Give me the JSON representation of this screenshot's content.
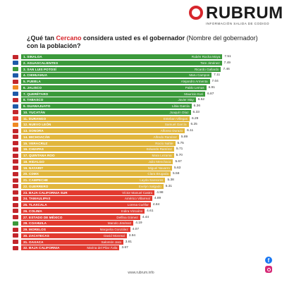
{
  "brand": {
    "name": "RUBRUM",
    "tagline": "INFORMACIÓN SALIDA DE CODIGO",
    "accent": "#d7262c"
  },
  "title": {
    "part1": "¿Qué tan ",
    "highlight": "Cercano",
    "part2": " considera usted es el gobernador ",
    "part3": "(Nombre del gobernador)",
    "part4": " con la población?"
  },
  "footer": "www.rubrum.info",
  "social": [
    "facebook-icon",
    "instagram-icon"
  ],
  "colors": {
    "green": "#3b9a3b",
    "yellow": "#e1b63c",
    "red": "#e23b30"
  },
  "chart_data": {
    "type": "bar",
    "orientation": "horizontal",
    "xlim": [
      0,
      8
    ],
    "rows": [
      {
        "rank": 1,
        "state": "1. SINALOA",
        "governor": "Rubén Rocha Moya",
        "value": 7.51,
        "color": "green",
        "flag": "#c3262c"
      },
      {
        "rank": 2,
        "state": "2. AGUASCALIENTES",
        "governor": "Tere Jiménez",
        "value": 7.49,
        "color": "green",
        "flag": "#1e5aa8"
      },
      {
        "rank": 3,
        "state": "3. SAN LUIS POTOSÍ",
        "governor": "Ricardo Gallardo",
        "value": 7.46,
        "color": "green",
        "flag": "#3b9a3b"
      },
      {
        "rank": 4,
        "state": "4. CHIHUAHUA",
        "governor": "Maru Campos",
        "value": 7.11,
        "color": "green",
        "flag": "#1e5aa8"
      },
      {
        "rank": 5,
        "state": "5. PUEBLA",
        "governor": "Alejandro Armenta",
        "value": 7.04,
        "color": "green",
        "flag": "#c3262c"
      },
      {
        "rank": 6,
        "state": "6. JALISCO",
        "governor": "Pablo Lemus",
        "value": 6.91,
        "color": "green",
        "flag": "#f08a24"
      },
      {
        "rank": 7,
        "state": "7. QUERÉTARO",
        "governor": "Mauricio Kuri",
        "value": 6.87,
        "color": "green",
        "flag": "#1e5aa8"
      },
      {
        "rank": 8,
        "state": "8. TABASCO",
        "governor": "Javier May",
        "value": 6.52,
        "color": "green",
        "flag": "#c3262c"
      },
      {
        "rank": 9,
        "state": "9. GUANAJUATO",
        "governor": "Libia García",
        "value": 6.36,
        "color": "green",
        "flag": "#1e5aa8"
      },
      {
        "rank": 10,
        "state": "10. YUCATÁN",
        "governor": "Joaquín Díaz",
        "value": 6.33,
        "color": "green",
        "flag": "#c3262c"
      },
      {
        "rank": 11,
        "state": "11. DURANGO",
        "governor": "Esteban Villegas",
        "value": 6.29,
        "color": "yellow",
        "flag": "#e23b30"
      },
      {
        "rank": 12,
        "state": "12. NUEVO LEÓN",
        "governor": "Samuel García",
        "value": 6.25,
        "color": "yellow",
        "flag": "#f08a24"
      },
      {
        "rank": 13,
        "state": "13. SONORA",
        "governor": "Alfonso Durazo",
        "value": 6.11,
        "color": "yellow",
        "flag": "#c3262c"
      },
      {
        "rank": 14,
        "state": "14. MICHOACÁN",
        "governor": "Alfredo Ramírez",
        "value": 5.89,
        "color": "yellow",
        "flag": "#c3262c"
      },
      {
        "rank": 15,
        "state": "15. VERACRUZ",
        "governor": "Rocío Nahle",
        "value": 5.75,
        "color": "yellow",
        "flag": "#c3262c"
      },
      {
        "rank": 16,
        "state": "16. CHIAPAS",
        "governor": "Eduardo Ramírez",
        "value": 5.71,
        "color": "yellow",
        "flag": "#c3262c"
      },
      {
        "rank": 17,
        "state": "17. QUINTANA ROO",
        "governor": "Mara Lezama",
        "value": 5.7,
        "color": "yellow",
        "flag": "#c3262c"
      },
      {
        "rank": 18,
        "state": "18. HIDALGO",
        "governor": "Julio Menchaca",
        "value": 5.67,
        "color": "yellow",
        "flag": "#c3262c"
      },
      {
        "rank": 19,
        "state": "19. NAYARIT",
        "governor": "Miguel Navarro",
        "value": 5.63,
        "color": "yellow",
        "flag": "#c3262c"
      },
      {
        "rank": 20,
        "state": "20. CDMX",
        "governor": "Clara Brugada",
        "value": 5.58,
        "color": "yellow",
        "flag": "#c3262c"
      },
      {
        "rank": 21,
        "state": "21. CAMPECHE",
        "governor": "Layda Sansores",
        "value": 5.38,
        "color": "yellow",
        "flag": "#c3262c"
      },
      {
        "rank": 22,
        "state": "22. GUERRERO",
        "governor": "Evelyn Salgado",
        "value": 5.31,
        "color": "yellow",
        "flag": "#c3262c"
      },
      {
        "rank": 23,
        "state": "23. BAJA CALIFORNIA SUR",
        "governor": "Víctor Manuel Castro",
        "value": 4.98,
        "color": "red",
        "flag": "#c3262c"
      },
      {
        "rank": 24,
        "state": "24. TAMAULIPAS",
        "governor": "Américo Villarreal",
        "value": 4.89,
        "color": "red",
        "flag": "#c3262c"
      },
      {
        "rank": 25,
        "state": "25. TLAXCALA",
        "governor": "Lorena Cuéllar",
        "value": 4.84,
        "color": "red",
        "flag": "#c3262c"
      },
      {
        "rank": 26,
        "state": "26. COLIMA",
        "governor": "Indira Vizcaíno",
        "value": 4.61,
        "color": "red",
        "flag": "#c3262c"
      },
      {
        "rank": 27,
        "state": "27. ESTADO DE MÉXICO",
        "governor": "Delfina Gómez",
        "value": 4.44,
        "color": "red",
        "flag": "#c3262c"
      },
      {
        "rank": 28,
        "state": "28. COAHUILA",
        "governor": "Manolo Jiménez",
        "value": 4.19,
        "color": "red",
        "flag": "#3b9a3b"
      },
      {
        "rank": 29,
        "state": "29. MORELOS",
        "governor": "Margarita González",
        "value": 4.07,
        "color": "red",
        "flag": "#c3262c"
      },
      {
        "rank": 30,
        "state": "30. ZACATECAS",
        "governor": "David Monreal",
        "value": 3.94,
        "color": "red",
        "flag": "#c3262c"
      },
      {
        "rank": 31,
        "state": "31. OAXACA",
        "governor": "Salomón Jara",
        "value": 3.81,
        "color": "red",
        "flag": "#c3262c"
      },
      {
        "rank": 32,
        "state": "32. BAJA CALIFORNIA",
        "governor": "Marina del Pilar Ávila",
        "value": 3.67,
        "color": "red",
        "flag": "#c3262c"
      }
    ]
  }
}
